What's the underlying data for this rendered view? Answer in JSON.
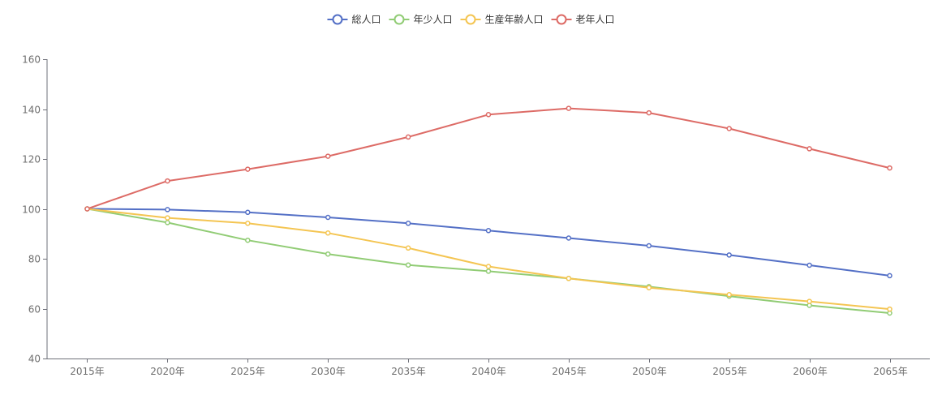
{
  "chart_data": {
    "type": "line",
    "title": "",
    "xlabel": "",
    "ylabel": "",
    "categories": [
      "2015年",
      "2020年",
      "2025年",
      "2030年",
      "2035年",
      "2040年",
      "2045年",
      "2050年",
      "2055年",
      "2060年",
      "2065年"
    ],
    "ylim": [
      40,
      160
    ],
    "yticks": [
      40,
      60,
      80,
      100,
      120,
      140,
      160
    ],
    "grid": false,
    "legend": "top-center",
    "series": [
      {
        "name": "総人口",
        "color": "#5470c6",
        "values": [
          100,
          99.7,
          98.6,
          96.6,
          94.2,
          91.3,
          88.3,
          85.2,
          81.5,
          77.4,
          73.2
        ]
      },
      {
        "name": "年少人口",
        "color": "#91cc75",
        "values": [
          100,
          94.5,
          87.4,
          81.9,
          77.5,
          75.0,
          72.1,
          68.8,
          65.0,
          61.3,
          58.2
        ]
      },
      {
        "name": "生産年齢人口",
        "color": "#f4c552",
        "values": [
          100,
          96.4,
          94.2,
          90.3,
          84.3,
          76.9,
          72.1,
          68.4,
          65.6,
          62.9,
          59.8
        ]
      },
      {
        "name": "老年人口",
        "color": "#dd6b66",
        "values": [
          100,
          111.2,
          115.9,
          121.1,
          128.8,
          137.8,
          140.3,
          138.5,
          132.2,
          124.1,
          116.4
        ]
      }
    ]
  }
}
